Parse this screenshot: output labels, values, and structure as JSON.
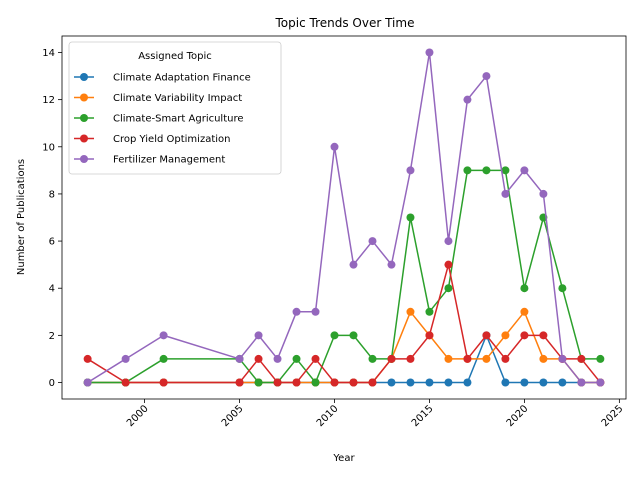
{
  "chart_data": {
    "type": "line",
    "title": "Topic Trends Over Time",
    "xlabel": "Year",
    "ylabel": "Number of Publications",
    "xlim": [
      1995.65,
      2025.35
    ],
    "ylim": [
      -0.7,
      14.7
    ],
    "xticks": [
      2000,
      2005,
      2010,
      2015,
      2020,
      2025
    ],
    "yticks": [
      0,
      2,
      4,
      6,
      8,
      10,
      12,
      14
    ],
    "grid": false,
    "legend": {
      "title": "Assigned Topic",
      "placement": "top-left"
    },
    "series": [
      {
        "name": "Climate Adaptation Finance",
        "color": "#1f77b4",
        "x": [
          1997,
          1999,
          2001,
          2005,
          2006,
          2007,
          2008,
          2009,
          2010,
          2011,
          2012,
          2013,
          2014,
          2015,
          2016,
          2017,
          2018,
          2019,
          2020,
          2021,
          2022,
          2023,
          2024
        ],
        "y": [
          0,
          0,
          0,
          0,
          0,
          0,
          0,
          0,
          0,
          0,
          0,
          0,
          0,
          0,
          0,
          0,
          2,
          0,
          0,
          0,
          0,
          0,
          0
        ]
      },
      {
        "name": "Climate Variability Impact",
        "color": "#ff7f0e",
        "x": [
          1997,
          1999,
          2001,
          2005,
          2006,
          2007,
          2008,
          2009,
          2010,
          2011,
          2012,
          2013,
          2014,
          2015,
          2016,
          2017,
          2018,
          2019,
          2020,
          2021,
          2022,
          2023,
          2024
        ],
        "y": [
          0,
          0,
          0,
          0,
          0,
          0,
          0,
          0,
          0,
          0,
          0,
          1,
          3,
          2,
          1,
          1,
          1,
          2,
          3,
          1,
          1,
          0,
          0
        ]
      },
      {
        "name": "Climate-Smart Agriculture",
        "color": "#2ca02c",
        "x": [
          1997,
          1999,
          2001,
          2005,
          2006,
          2007,
          2008,
          2009,
          2010,
          2011,
          2012,
          2013,
          2014,
          2015,
          2016,
          2017,
          2018,
          2019,
          2020,
          2021,
          2022,
          2023,
          2024
        ],
        "y": [
          0,
          0,
          1,
          1,
          0,
          0,
          1,
          0,
          2,
          2,
          1,
          1,
          7,
          3,
          4,
          9,
          9,
          9,
          4,
          7,
          4,
          1,
          1
        ]
      },
      {
        "name": "Crop Yield Optimization",
        "color": "#d62728",
        "x": [
          1997,
          1999,
          2001,
          2005,
          2006,
          2007,
          2008,
          2009,
          2010,
          2011,
          2012,
          2013,
          2014,
          2015,
          2016,
          2017,
          2018,
          2019,
          2020,
          2021,
          2022,
          2023,
          2024
        ],
        "y": [
          1,
          0,
          0,
          0,
          1,
          0,
          0,
          1,
          0,
          0,
          0,
          1,
          1,
          2,
          5,
          1,
          2,
          1,
          2,
          2,
          1,
          1,
          0
        ]
      },
      {
        "name": "Fertilizer Management",
        "color": "#9467bd",
        "x": [
          1997,
          1999,
          2001,
          2005,
          2006,
          2007,
          2008,
          2009,
          2010,
          2011,
          2012,
          2013,
          2014,
          2015,
          2016,
          2017,
          2018,
          2019,
          2020,
          2021,
          2022,
          2023,
          2024
        ],
        "y": [
          0,
          1,
          2,
          1,
          2,
          1,
          3,
          3,
          10,
          5,
          6,
          5,
          9,
          14,
          6,
          12,
          13,
          8,
          9,
          8,
          1,
          0,
          0
        ]
      }
    ]
  }
}
